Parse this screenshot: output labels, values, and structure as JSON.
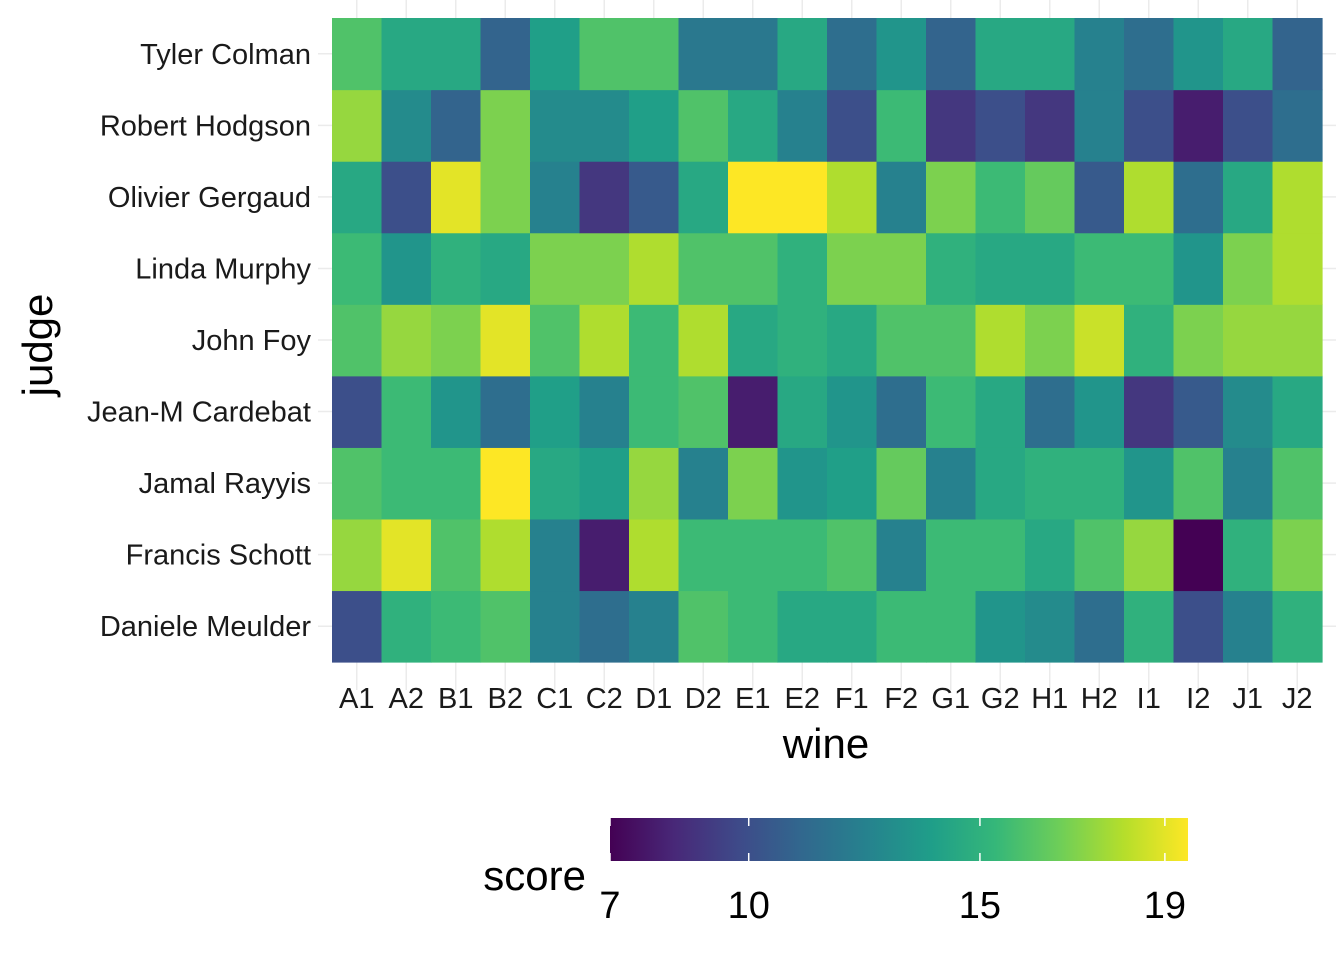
{
  "chart_data": {
    "type": "heatmap",
    "x": [
      "A1",
      "A2",
      "B1",
      "B2",
      "C1",
      "C2",
      "D1",
      "D2",
      "E1",
      "E2",
      "F1",
      "F2",
      "G1",
      "G2",
      "H1",
      "H2",
      "I1",
      "I2",
      "J1",
      "J2"
    ],
    "y": [
      "Daniele Meulder",
      "Francis Schott",
      "Jamal Rayyis",
      "Jean-M Cardebat",
      "John Foy",
      "Linda Murphy",
      "Olivier Gergaud",
      "Robert Hodgson",
      "Tyler Colman"
    ],
    "xlabel": "wine",
    "ylabel": "judge",
    "legend_title": "score",
    "legend_position": "bottom",
    "color_scale": "viridis",
    "color_range": [
      7,
      19.5
    ],
    "legend_ticks": [
      7,
      10,
      15,
      19
    ],
    "grid": true,
    "values": [
      [
        10,
        15,
        15.5,
        16,
        12.5,
        11.5,
        12.5,
        16,
        15.5,
        14.5,
        14.5,
        15.5,
        15.5,
        13.5,
        13,
        11.5,
        15,
        10,
        12.5,
        15
      ],
      [
        17.5,
        19,
        16,
        18,
        12.5,
        8,
        18,
        15.5,
        15.5,
        15.5,
        16,
        12.5,
        15.5,
        15.5,
        14.5,
        16,
        17.5,
        7,
        15,
        17
      ],
      [
        16,
        15.5,
        15.5,
        19.5,
        14.5,
        14,
        17.5,
        12.5,
        17,
        13.5,
        14,
        16.5,
        12.5,
        14.5,
        15,
        15,
        13.5,
        16,
        12.5,
        16
      ],
      [
        10,
        15.5,
        13.5,
        11.5,
        14,
        12.5,
        15.5,
        16,
        8,
        14.5,
        13.5,
        11.5,
        15.5,
        14.5,
        11.5,
        13.5,
        9,
        10.5,
        13,
        14.5
      ],
      [
        16,
        17.5,
        17,
        19,
        16,
        18,
        15.5,
        18,
        14.5,
        15,
        14.5,
        16,
        16,
        18,
        17,
        18.5,
        15,
        17,
        17.5,
        17.5
      ],
      [
        15.5,
        13.5,
        15,
        14.5,
        17,
        17,
        18,
        16,
        16,
        15,
        17,
        17,
        15,
        14.5,
        14.5,
        15.5,
        15.5,
        13.5,
        17,
        18
      ],
      [
        14.5,
        10,
        19,
        17,
        12.5,
        9,
        10.5,
        14.5,
        19.5,
        19.5,
        18,
        12.5,
        17,
        15.5,
        16.5,
        10.5,
        18,
        11.5,
        14.5,
        18
      ],
      [
        17.5,
        13,
        11,
        17,
        13,
        13,
        14,
        16,
        14.5,
        12.5,
        10,
        15.5,
        9,
        10,
        9,
        12.5,
        10,
        8,
        10,
        11.5
      ],
      [
        16,
        14.5,
        14.5,
        11,
        14,
        16,
        16,
        12,
        12,
        14.5,
        11.5,
        13.5,
        11,
        14.5,
        14.5,
        12.5,
        11.5,
        13.5,
        14.5,
        11
      ]
    ]
  }
}
